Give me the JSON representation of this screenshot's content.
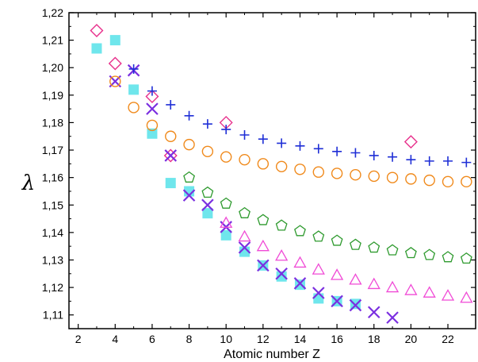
{
  "chart_data": {
    "type": "scatter",
    "xlabel": "Atomic number Z",
    "ylabel": "λ",
    "xlim": [
      1.5,
      23.5
    ],
    "ylim": [
      1.105,
      1.22
    ],
    "x_ticks": [
      2,
      4,
      6,
      8,
      10,
      12,
      14,
      16,
      18,
      20,
      22
    ],
    "x_tick_labels": [
      "2",
      "4",
      "6",
      "8",
      "10",
      "12",
      "14",
      "16",
      "18",
      "20",
      "22"
    ],
    "y_ticks": [
      1.11,
      1.12,
      1.13,
      1.14,
      1.15,
      1.16,
      1.17,
      1.18,
      1.19,
      1.2,
      1.21,
      1.22
    ],
    "y_tick_labels": [
      "1,11",
      "1,12",
      "1,13",
      "1,14",
      "1,15",
      "1,16",
      "1,17",
      "1,18",
      "1,19",
      "1,20",
      "1,21",
      "1,22"
    ],
    "grid": false,
    "series": [
      {
        "marker": "diamond",
        "color": "#e8308c",
        "x": [
          3,
          4,
          6,
          7,
          10,
          20
        ],
        "y": [
          1.2135,
          1.2015,
          1.1895,
          1.168,
          1.18,
          1.173
        ]
      },
      {
        "marker": "square",
        "color": "#6fe6ec",
        "x": [
          3,
          4,
          5,
          6,
          7,
          8,
          9,
          10,
          11,
          12,
          13,
          14,
          15,
          16,
          17
        ],
        "y": [
          1.207,
          1.21,
          1.192,
          1.176,
          1.158,
          1.155,
          1.147,
          1.139,
          1.133,
          1.128,
          1.124,
          1.121,
          1.116,
          1.115,
          1.114
        ]
      },
      {
        "marker": "x",
        "color": "#7b2fe0",
        "x": [
          4,
          5,
          6,
          7,
          8,
          9,
          10,
          11,
          12,
          13,
          14,
          15,
          16,
          17,
          18,
          19
        ],
        "y": [
          1.195,
          1.199,
          1.185,
          1.168,
          1.1535,
          1.15,
          1.142,
          1.1345,
          1.128,
          1.125,
          1.1215,
          1.118,
          1.115,
          1.1135,
          1.111,
          1.109
        ]
      },
      {
        "marker": "plus",
        "color": "#1f2fd6",
        "x": [
          5,
          6,
          7,
          8,
          9,
          10,
          11,
          12,
          13,
          14,
          15,
          16,
          17,
          18,
          19,
          20,
          21,
          22,
          23
        ],
        "y": [
          1.1995,
          1.1915,
          1.1865,
          1.1825,
          1.1795,
          1.1775,
          1.1755,
          1.174,
          1.1725,
          1.1715,
          1.1705,
          1.1695,
          1.169,
          1.168,
          1.1675,
          1.1665,
          1.166,
          1.166,
          1.1655
        ]
      },
      {
        "marker": "circle",
        "color": "#f08a1c",
        "x": [
          4,
          5,
          6,
          7,
          8,
          9,
          10,
          11,
          12,
          13,
          14,
          15,
          16,
          17,
          18,
          19,
          20,
          21,
          22,
          23
        ],
        "y": [
          1.195,
          1.1855,
          1.179,
          1.175,
          1.172,
          1.1695,
          1.1675,
          1.1665,
          1.165,
          1.164,
          1.163,
          1.162,
          1.1615,
          1.161,
          1.1605,
          1.16,
          1.1595,
          1.159,
          1.1585,
          1.1585
        ]
      },
      {
        "marker": "pentagon",
        "color": "#2e9a2e",
        "x": [
          8,
          9,
          10,
          11,
          12,
          13,
          14,
          15,
          16,
          17,
          18,
          19,
          20,
          21,
          22,
          23
        ],
        "y": [
          1.16,
          1.1545,
          1.1505,
          1.147,
          1.1445,
          1.1425,
          1.1405,
          1.1385,
          1.137,
          1.1355,
          1.1345,
          1.1335,
          1.1325,
          1.1318,
          1.131,
          1.1305
        ]
      },
      {
        "marker": "triangle",
        "color": "#f04ad6",
        "x": [
          10,
          11,
          12,
          13,
          14,
          15,
          16,
          17,
          18,
          19,
          20,
          21,
          22,
          23
        ],
        "y": [
          1.1435,
          1.1385,
          1.135,
          1.1315,
          1.129,
          1.1265,
          1.1245,
          1.1228,
          1.1212,
          1.12,
          1.119,
          1.1181,
          1.117,
          1.1162
        ]
      }
    ]
  }
}
